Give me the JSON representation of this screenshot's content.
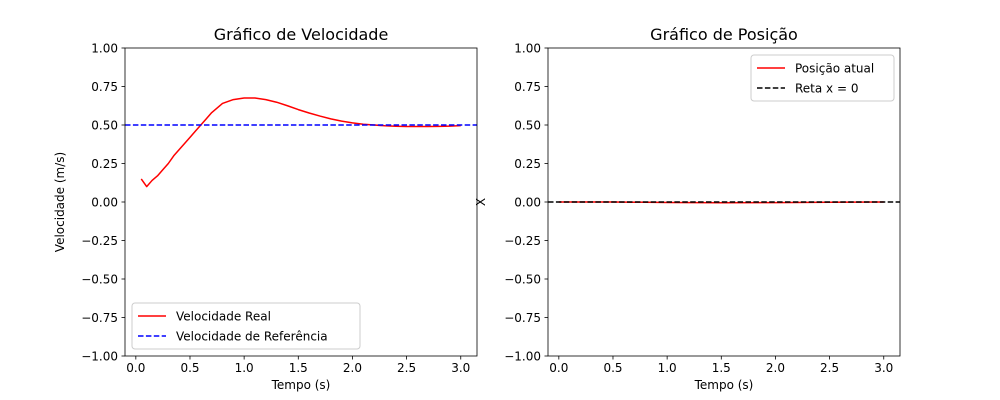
{
  "chart_data": [
    {
      "type": "line",
      "title": "Gráfico de Velocidade",
      "xlabel": "Tempo (s)",
      "ylabel": "Velocidade (m/s)",
      "xlim": [
        -0.1,
        3.15
      ],
      "ylim": [
        -1.0,
        1.0
      ],
      "xticks": [
        0.0,
        0.5,
        1.0,
        1.5,
        2.0,
        2.5,
        3.0
      ],
      "xtick_labels": [
        "0.0",
        "0.5",
        "1.0",
        "1.5",
        "2.0",
        "2.5",
        "3.0"
      ],
      "yticks": [
        -1.0,
        -0.75,
        -0.5,
        -0.25,
        0.0,
        0.25,
        0.5,
        0.75,
        1.0
      ],
      "ytick_labels": [
        "−1.00",
        "−0.75",
        "−0.50",
        "−0.25",
        "0.00",
        "0.25",
        "0.50",
        "0.75",
        "1.00"
      ],
      "grid": false,
      "legend_position": "lower-left",
      "series": [
        {
          "name": "Velocidade Real",
          "color": "#ff0000",
          "style": "solid",
          "x": [
            0.05,
            0.1,
            0.15,
            0.2,
            0.25,
            0.3,
            0.35,
            0.4,
            0.45,
            0.5,
            0.55,
            0.6,
            0.65,
            0.7,
            0.75,
            0.8,
            0.9,
            1.0,
            1.1,
            1.2,
            1.3,
            1.4,
            1.5,
            1.6,
            1.7,
            1.8,
            1.9,
            2.0,
            2.1,
            2.2,
            2.3,
            2.4,
            2.5,
            2.6,
            2.7,
            2.8,
            2.9,
            3.0
          ],
          "y": [
            0.15,
            0.1,
            0.14,
            0.17,
            0.21,
            0.25,
            0.3,
            0.34,
            0.38,
            0.42,
            0.46,
            0.5,
            0.54,
            0.58,
            0.61,
            0.64,
            0.665,
            0.675,
            0.675,
            0.665,
            0.648,
            0.625,
            0.6,
            0.578,
            0.558,
            0.54,
            0.525,
            0.514,
            0.505,
            0.5,
            0.495,
            0.492,
            0.49,
            0.49,
            0.49,
            0.491,
            0.493,
            0.496
          ]
        },
        {
          "name": "Velocidade de Referência",
          "color": "#0000ff",
          "style": "dashed",
          "x": [
            -0.1,
            3.15
          ],
          "y": [
            0.5,
            0.5
          ]
        }
      ]
    },
    {
      "type": "line",
      "title": "Gráfico de Posição",
      "xlabel": "Tempo (s)",
      "ylabel": "X",
      "xlim": [
        -0.1,
        3.15
      ],
      "ylim": [
        -1.0,
        1.0
      ],
      "xticks": [
        0.0,
        0.5,
        1.0,
        1.5,
        2.0,
        2.5,
        3.0
      ],
      "xtick_labels": [
        "0.0",
        "0.5",
        "1.0",
        "1.5",
        "2.0",
        "2.5",
        "3.0"
      ],
      "yticks": [
        -1.0,
        -0.75,
        -0.5,
        -0.25,
        0.0,
        0.25,
        0.5,
        0.75,
        1.0
      ],
      "ytick_labels": [
        "−1.00",
        "−0.75",
        "−0.50",
        "−0.25",
        "0.00",
        "0.25",
        "0.50",
        "0.75",
        "1.00"
      ],
      "grid": false,
      "legend_position": "top-right",
      "series": [
        {
          "name": "Posição atual",
          "color": "#ff0000",
          "style": "solid",
          "x": [
            0.0,
            0.5,
            1.0,
            1.5,
            2.0,
            2.5,
            3.0
          ],
          "y": [
            0.0,
            0.0,
            -0.003,
            -0.005,
            -0.004,
            -0.002,
            0.0
          ]
        },
        {
          "name": "Reta x = 0",
          "color": "#000000",
          "style": "dashed",
          "x": [
            -0.1,
            3.15
          ],
          "y": [
            0.0,
            0.0
          ]
        }
      ]
    }
  ]
}
